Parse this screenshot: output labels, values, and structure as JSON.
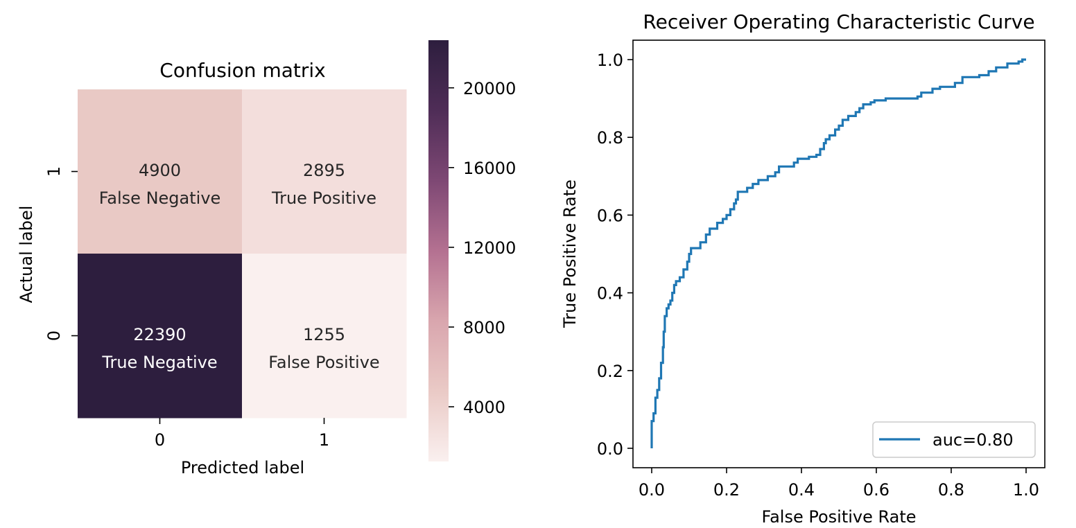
{
  "chart_data": [
    {
      "type": "heatmap",
      "title": "Confusion matrix",
      "xlabel": "Predicted label",
      "ylabel": "Actual label",
      "x_categories": [
        "0",
        "1"
      ],
      "y_categories": [
        "1",
        "0"
      ],
      "cells": [
        {
          "row": 0,
          "col": 0,
          "value": 4900,
          "value_label": "4900",
          "name": "False Negative"
        },
        {
          "row": 0,
          "col": 1,
          "value": 2895,
          "value_label": "2895",
          "name": "True Positive"
        },
        {
          "row": 1,
          "col": 0,
          "value": 22390,
          "value_label": "22390",
          "name": "True Negative"
        },
        {
          "row": 1,
          "col": 1,
          "value": 1255,
          "value_label": "1255",
          "name": "False Positive"
        }
      ],
      "colorbar": {
        "range": [
          1255,
          22390
        ],
        "ticks": [
          4000,
          8000,
          12000,
          16000,
          20000
        ],
        "tick_labels": [
          "4000",
          "8000",
          "12000",
          "16000",
          "20000"
        ],
        "colormap": [
          "#faf0ef",
          "#eacac6",
          "#d9a6ae",
          "#b47191",
          "#7e4874",
          "#4f2d57",
          "#2d1e3e"
        ]
      },
      "text_colors": {
        "light_cell": "#262626",
        "dark_cell": "#ffffff"
      }
    },
    {
      "type": "line",
      "title": "Receiver Operating Characteristic Curve",
      "xlabel": "False Positive Rate",
      "ylabel": "True Positive Rate",
      "xlim": [
        -0.05,
        1.05
      ],
      "ylim": [
        -0.05,
        1.05
      ],
      "xticks": [
        0.0,
        0.2,
        0.4,
        0.6,
        0.8,
        1.0
      ],
      "xtick_labels": [
        "0.0",
        "0.2",
        "0.4",
        "0.6",
        "0.8",
        "1.0"
      ],
      "yticks": [
        0.0,
        0.2,
        0.4,
        0.6,
        0.8,
        1.0
      ],
      "ytick_labels": [
        "0.0",
        "0.2",
        "0.4",
        "0.6",
        "0.8",
        "1.0"
      ],
      "legend_placement": "lower right",
      "series": [
        {
          "name": "auc=0.80",
          "color": "#1f77b4",
          "points": [
            [
              0.0,
              0.0
            ],
            [
              0.0,
              0.07
            ],
            [
              0.005,
              0.07
            ],
            [
              0.005,
              0.09
            ],
            [
              0.01,
              0.09
            ],
            [
              0.01,
              0.13
            ],
            [
              0.015,
              0.13
            ],
            [
              0.015,
              0.15
            ],
            [
              0.02,
              0.15
            ],
            [
              0.02,
              0.18
            ],
            [
              0.025,
              0.18
            ],
            [
              0.025,
              0.22
            ],
            [
              0.03,
              0.22
            ],
            [
              0.03,
              0.26
            ],
            [
              0.032,
              0.26
            ],
            [
              0.032,
              0.3
            ],
            [
              0.035,
              0.3
            ],
            [
              0.035,
              0.34
            ],
            [
              0.04,
              0.34
            ],
            [
              0.04,
              0.36
            ],
            [
              0.045,
              0.36
            ],
            [
              0.045,
              0.37
            ],
            [
              0.05,
              0.37
            ],
            [
              0.05,
              0.38
            ],
            [
              0.055,
              0.38
            ],
            [
              0.055,
              0.4
            ],
            [
              0.06,
              0.4
            ],
            [
              0.06,
              0.42
            ],
            [
              0.065,
              0.42
            ],
            [
              0.065,
              0.43
            ],
            [
              0.075,
              0.43
            ],
            [
              0.075,
              0.44
            ],
            [
              0.085,
              0.44
            ],
            [
              0.085,
              0.46
            ],
            [
              0.095,
              0.46
            ],
            [
              0.095,
              0.48
            ],
            [
              0.1,
              0.48
            ],
            [
              0.1,
              0.5
            ],
            [
              0.105,
              0.5
            ],
            [
              0.105,
              0.515
            ],
            [
              0.13,
              0.515
            ],
            [
              0.13,
              0.53
            ],
            [
              0.145,
              0.53
            ],
            [
              0.145,
              0.55
            ],
            [
              0.155,
              0.55
            ],
            [
              0.155,
              0.565
            ],
            [
              0.175,
              0.565
            ],
            [
              0.175,
              0.58
            ],
            [
              0.19,
              0.58
            ],
            [
              0.19,
              0.59
            ],
            [
              0.2,
              0.59
            ],
            [
              0.2,
              0.6
            ],
            [
              0.21,
              0.6
            ],
            [
              0.21,
              0.615
            ],
            [
              0.22,
              0.615
            ],
            [
              0.22,
              0.63
            ],
            [
              0.225,
              0.63
            ],
            [
              0.225,
              0.64
            ],
            [
              0.23,
              0.64
            ],
            [
              0.23,
              0.66
            ],
            [
              0.255,
              0.66
            ],
            [
              0.255,
              0.67
            ],
            [
              0.27,
              0.67
            ],
            [
              0.27,
              0.68
            ],
            [
              0.285,
              0.68
            ],
            [
              0.285,
              0.69
            ],
            [
              0.31,
              0.69
            ],
            [
              0.31,
              0.7
            ],
            [
              0.33,
              0.7
            ],
            [
              0.33,
              0.71
            ],
            [
              0.34,
              0.71
            ],
            [
              0.34,
              0.725
            ],
            [
              0.38,
              0.725
            ],
            [
              0.38,
              0.735
            ],
            [
              0.39,
              0.735
            ],
            [
              0.39,
              0.745
            ],
            [
              0.42,
              0.745
            ],
            [
              0.42,
              0.75
            ],
            [
              0.44,
              0.75
            ],
            [
              0.44,
              0.755
            ],
            [
              0.45,
              0.755
            ],
            [
              0.45,
              0.77
            ],
            [
              0.46,
              0.77
            ],
            [
              0.46,
              0.785
            ],
            [
              0.465,
              0.785
            ],
            [
              0.465,
              0.795
            ],
            [
              0.475,
              0.795
            ],
            [
              0.475,
              0.805
            ],
            [
              0.49,
              0.805
            ],
            [
              0.49,
              0.82
            ],
            [
              0.5,
              0.82
            ],
            [
              0.5,
              0.83
            ],
            [
              0.51,
              0.83
            ],
            [
              0.51,
              0.845
            ],
            [
              0.525,
              0.845
            ],
            [
              0.525,
              0.855
            ],
            [
              0.545,
              0.855
            ],
            [
              0.545,
              0.865
            ],
            [
              0.555,
              0.865
            ],
            [
              0.555,
              0.875
            ],
            [
              0.565,
              0.875
            ],
            [
              0.565,
              0.885
            ],
            [
              0.585,
              0.885
            ],
            [
              0.585,
              0.89
            ],
            [
              0.595,
              0.89
            ],
            [
              0.595,
              0.895
            ],
            [
              0.625,
              0.895
            ],
            [
              0.625,
              0.9
            ],
            [
              0.71,
              0.9
            ],
            [
              0.71,
              0.905
            ],
            [
              0.72,
              0.905
            ],
            [
              0.72,
              0.915
            ],
            [
              0.75,
              0.915
            ],
            [
              0.75,
              0.925
            ],
            [
              0.77,
              0.925
            ],
            [
              0.77,
              0.93
            ],
            [
              0.81,
              0.93
            ],
            [
              0.81,
              0.94
            ],
            [
              0.83,
              0.94
            ],
            [
              0.83,
              0.955
            ],
            [
              0.875,
              0.955
            ],
            [
              0.875,
              0.96
            ],
            [
              0.9,
              0.96
            ],
            [
              0.9,
              0.97
            ],
            [
              0.92,
              0.97
            ],
            [
              0.92,
              0.98
            ],
            [
              0.95,
              0.98
            ],
            [
              0.95,
              0.99
            ],
            [
              0.98,
              0.99
            ],
            [
              0.98,
              0.995
            ],
            [
              0.99,
              0.995
            ],
            [
              0.99,
              1.0
            ],
            [
              1.0,
              1.0
            ]
          ]
        }
      ]
    }
  ]
}
